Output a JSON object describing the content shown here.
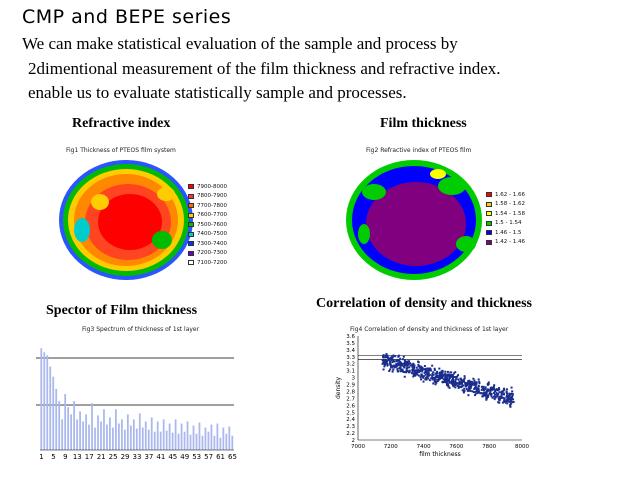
{
  "title": "CMP and BEPE series",
  "body": [
    "We can make statistical evaluation of the sample and process by",
    "2dimentional measurement of the film thickness and refractive index.",
    "enable us to evaluate statistically sample and processes."
  ],
  "panels": {
    "p1": {
      "caption": "Refractive index",
      "chart_title": "Fig1  Thickness of PTEOS film system",
      "legend": [
        {
          "label": "7900-8000",
          "color": "#ff0000"
        },
        {
          "label": "7800-7900",
          "color": "#ff3333"
        },
        {
          "label": "7700-7800",
          "color": "#ff6600"
        },
        {
          "label": "7600-7700",
          "color": "#ffcc00"
        },
        {
          "label": "7500-7600",
          "color": "#00bb00"
        },
        {
          "label": "7400-7500",
          "color": "#00cccc"
        },
        {
          "label": "7300-7400",
          "color": "#0033ff"
        },
        {
          "label": "7200-7300",
          "color": "#6600cc"
        },
        {
          "label": "7100-7200",
          "color": "#ffffff"
        }
      ]
    },
    "p2": {
      "caption": "Film thickness",
      "chart_title": "Fig2  Refractive index of PTEOS film",
      "legend": [
        {
          "label": "1.62 - 1.66",
          "color": "#ff0000"
        },
        {
          "label": "1.58 - 1.62",
          "color": "#ffcc00"
        },
        {
          "label": "1.54 - 1.58",
          "color": "#ffff00"
        },
        {
          "label": "1.5 - 1.54",
          "color": "#00cc00"
        },
        {
          "label": "1.46 - 1.5",
          "color": "#0000ff"
        },
        {
          "label": "1.42 - 1.46",
          "color": "#800080"
        }
      ]
    },
    "p3": {
      "caption": "Spector of Film thickness",
      "chart_title": "Fig3  Spectrum of thickness of 1st layer"
    },
    "p4": {
      "caption": "Correlation of density and thickness",
      "chart_title": "Fig4  Correlation of density and thickness of 1st layer"
    }
  },
  "chart_data": [
    {
      "type": "bar",
      "title": "Fig3  Spectrum of thickness of 1st layer",
      "x_tick_labels": [
        "1",
        "5",
        "9",
        "13",
        "17",
        "21",
        "25",
        "29",
        "33",
        "37",
        "41",
        "45",
        "49",
        "53",
        "57",
        "61",
        "65"
      ],
      "categories": [
        1,
        2,
        3,
        4,
        5,
        6,
        7,
        8,
        9,
        10,
        11,
        12,
        13,
        14,
        15,
        16,
        17,
        18,
        19,
        20,
        21,
        22,
        23,
        24,
        25,
        26,
        27,
        28,
        29,
        30,
        31,
        32,
        33,
        34,
        35,
        36,
        37,
        38,
        39,
        40,
        41,
        42,
        43,
        44,
        45,
        46,
        47,
        48,
        49,
        50,
        51,
        52,
        53,
        54,
        55,
        56,
        57,
        58,
        59,
        60,
        61,
        62,
        63,
        64,
        65
      ],
      "values": [
        100,
        96,
        93,
        82,
        72,
        60,
        48,
        30,
        55,
        42,
        35,
        48,
        30,
        38,
        28,
        35,
        25,
        46,
        22,
        34,
        28,
        40,
        25,
        32,
        22,
        40,
        26,
        30,
        20,
        35,
        24,
        30,
        21,
        36,
        22,
        28,
        20,
        32,
        18,
        28,
        18,
        30,
        19,
        26,
        17,
        30,
        16,
        26,
        18,
        28,
        15,
        24,
        16,
        27,
        14,
        22,
        18,
        25,
        14,
        26,
        12,
        22,
        16,
        23,
        14
      ],
      "ylim": [
        0,
        110
      ]
    },
    {
      "type": "scatter",
      "title": "Fig4  Correlation of density and thickness of 1st layer",
      "xlabel": "film thickness",
      "ylabel": "density",
      "x_tick_labels": [
        "7000",
        "7200",
        "7400",
        "7600",
        "7800",
        "8000"
      ],
      "y_tick_labels": [
        "3.6",
        "3.5",
        "3.4",
        "3.3",
        "3.2",
        "3.1",
        "3",
        "2.9",
        "2.8",
        "2.7",
        "2.6",
        "2.5",
        "2.4",
        "2.3",
        "2.2",
        "2"
      ],
      "xlim": [
        7000,
        8000
      ],
      "ylim": [
        2.0,
        3.6
      ],
      "trend": {
        "slope": -0.00075,
        "at_7200": 3.2,
        "at_7950": 2.64
      },
      "point_cloud": {
        "x_range": [
          7150,
          7950
        ],
        "spread": 0.12,
        "count": 700
      }
    }
  ]
}
